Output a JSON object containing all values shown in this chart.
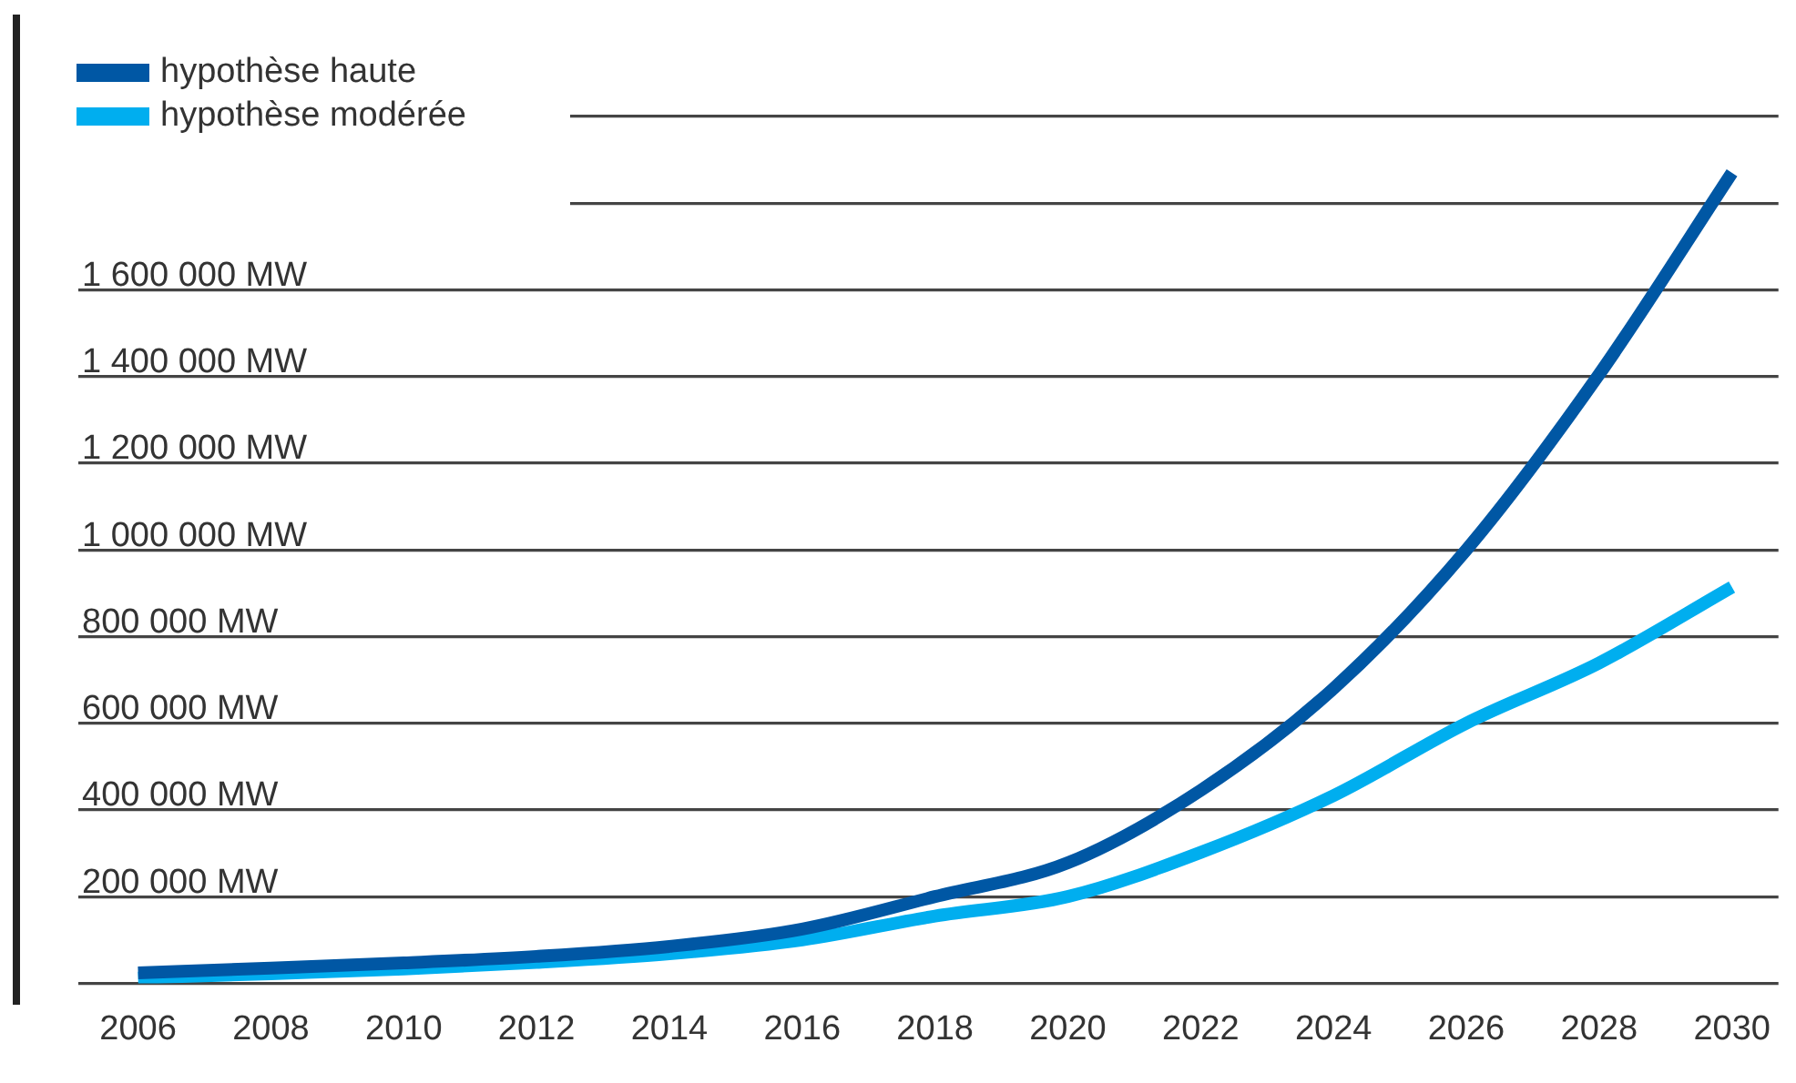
{
  "chart_data": {
    "type": "line",
    "x": [
      2006,
      2008,
      2010,
      2012,
      2014,
      2016,
      2018,
      2020,
      2022,
      2024,
      2026,
      2028,
      2030
    ],
    "series": [
      {
        "name": "hypothèse haute",
        "color": "#0057a4",
        "values": [
          24000,
          35000,
          47000,
          62000,
          85000,
          125000,
          200000,
          278000,
          445000,
          680000,
          1000000,
          1405000,
          1870000
        ]
      },
      {
        "name": "hypothèse modérée",
        "color": "#00aeef",
        "values": [
          12000,
          22000,
          33000,
          48000,
          68000,
          100000,
          155000,
          200000,
          302000,
          433000,
          600000,
          739000,
          914000
        ]
      }
    ],
    "xlim": [
      2005.1,
      2030.7
    ],
    "xticks": [
      2006,
      2008,
      2010,
      2012,
      2014,
      2016,
      2018,
      2020,
      2022,
      2024,
      2026,
      2028,
      2030
    ],
    "ylim": [
      0,
      2000000
    ],
    "yticks": [
      {
        "value": 0,
        "label": null
      },
      {
        "value": 200000,
        "label": "200 000 MW"
      },
      {
        "value": 400000,
        "label": "400 000 MW"
      },
      {
        "value": 600000,
        "label": "600 000 MW"
      },
      {
        "value": 800000,
        "label": "800 000 MW"
      },
      {
        "value": 1000000,
        "label": "1 000 000 MW"
      },
      {
        "value": 1200000,
        "label": "1 200 000 MW"
      },
      {
        "value": 1400000,
        "label": "1 400 000 MW"
      },
      {
        "value": 1600000,
        "label": "1 600 000 MW"
      },
      {
        "value": 1800000,
        "label": null
      },
      {
        "value": 2000000,
        "label": null
      }
    ],
    "grid": "y",
    "legend": "top left",
    "marker": "none",
    "line_style": "solid"
  }
}
